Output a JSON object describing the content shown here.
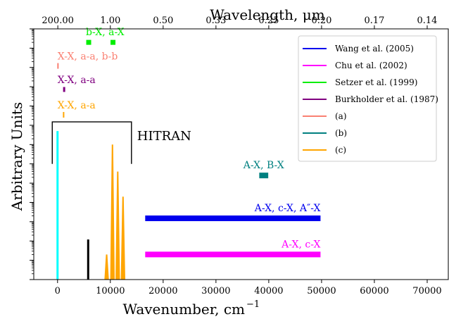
{
  "chart_data": {
    "type": "bar",
    "title": "",
    "xlabel": "Wavenumber, cm",
    "xlabel_sup": "−1",
    "ylabel": "Arbitrary Units",
    "top_xlabel": "Wavelength, μm",
    "xlim": [
      -4500,
      74000
    ],
    "x_ticks": [
      0,
      10000,
      20000,
      30000,
      40000,
      50000,
      60000,
      70000
    ],
    "x_tick_labels": [
      "0",
      "10000",
      "20000",
      "30000",
      "40000",
      "50000",
      "60000",
      "70000"
    ],
    "top_ticks": [
      {
        "label": "200.00",
        "wavenumber": 50
      },
      {
        "label": "1.00",
        "wavenumber": 10000
      },
      {
        "label": "0.50",
        "wavenumber": 20000
      },
      {
        "label": "0.33",
        "wavenumber": 30000
      },
      {
        "label": "0.25",
        "wavenumber": 40000
      },
      {
        "label": "0.20",
        "wavenumber": 50000
      },
      {
        "label": "0.17",
        "wavenumber": 60000
      },
      {
        "label": "0.14",
        "wavenumber": 70000
      }
    ],
    "y_scale": "log",
    "ylim": [
      1e-13,
      1.0
    ],
    "colors": {
      "wang": "#0000ee",
      "chu": "#ff00ff",
      "setzer": "#00ee00",
      "burkholder": "#800080",
      "a": "#fa8072",
      "b": "#008080",
      "c": "#ffa500",
      "hitran_cyan": "#00ffff",
      "hitran_black": "#000000",
      "hitran_orange": "#ffa500"
    },
    "bands": [
      {
        "series": "Wang et al. (2005)",
        "x_start": 16600,
        "x_end": 49800,
        "y": 1.5e-10,
        "label": "A-X, c-X, A″-X",
        "color_key": "wang"
      },
      {
        "series": "Chu et al. (2002)",
        "x_start": 16600,
        "x_end": 49800,
        "y": 2e-12,
        "label": "A-X, c-X",
        "color_key": "chu"
      },
      {
        "series": "(b)",
        "x_start": 38200,
        "x_end": 39900,
        "y": 2.5e-08,
        "label": "A-X, B-X",
        "color_key": "b"
      }
    ],
    "markers": [
      {
        "series": "Setzer et al. (1999)",
        "x": 5900,
        "y": 0.2,
        "color_key": "setzer"
      },
      {
        "series": "Setzer et al. (1999)",
        "x": 10500,
        "y": 0.2,
        "color_key": "setzer"
      },
      {
        "series": "(a)",
        "x": 80,
        "y": 0.012,
        "color_key": "a"
      },
      {
        "series": "Burkholder et al. (1987)",
        "x": 1250,
        "y": 0.00072,
        "color_key": "burkholder"
      },
      {
        "series": "(c)",
        "x": 1150,
        "y": 3.5e-05,
        "color_key": "c"
      }
    ],
    "marker_labels": [
      {
        "text": "b-X, a-X",
        "color_key": "setzer"
      },
      {
        "text": "X-X, a-a, b-b",
        "color_key": "a"
      },
      {
        "text": "X-X, a-a",
        "color_key": "burkholder"
      },
      {
        "text": "X-X, a-a",
        "color_key": "c"
      }
    ],
    "hitran": {
      "label": "HITRAN",
      "bracket_x": [
        -1000,
        14000
      ],
      "bracket_y": 1.5e-05,
      "spikes": [
        {
          "x": 0,
          "peak": 5e-06,
          "color_key": "hitran_cyan"
        },
        {
          "x": 5800,
          "peak": 1.2e-11,
          "color_key": "hitran_black"
        },
        {
          "x": 9300,
          "peak": 2e-12,
          "color_key": "hitran_orange"
        },
        {
          "x": 10400,
          "peak": 1e-06,
          "color_key": "hitran_orange"
        },
        {
          "x": 11400,
          "peak": 4e-08,
          "color_key": "hitran_orange"
        },
        {
          "x": 12400,
          "peak": 2e-09,
          "color_key": "hitran_orange"
        }
      ]
    },
    "legend": {
      "placement": "top-right",
      "entries": [
        {
          "name": "Wang et al. (2005)",
          "color_key": "wang"
        },
        {
          "name": "Chu et al. (2002)",
          "color_key": "chu"
        },
        {
          "name": "Setzer et al. (1999)",
          "color_key": "setzer"
        },
        {
          "name": "Burkholder et al. (1987)",
          "color_key": "burkholder"
        },
        {
          "name": "(a)",
          "color_key": "a"
        },
        {
          "name": "(b)",
          "color_key": "b"
        },
        {
          "name": "(c)",
          "color_key": "c"
        }
      ]
    },
    "grid": false
  }
}
